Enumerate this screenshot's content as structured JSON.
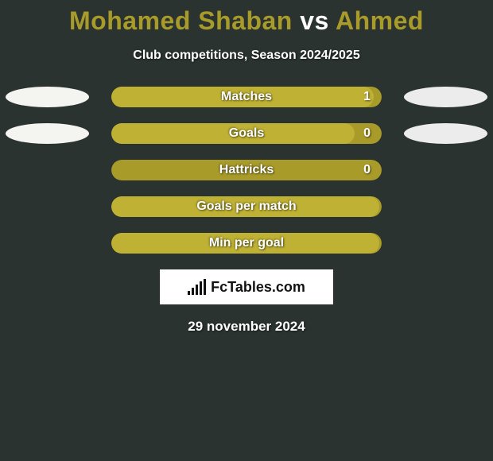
{
  "background_color": "#2a332f",
  "title": {
    "player1": "Mohamed Shaban",
    "vs": "vs",
    "player2": "Ahmed",
    "color_p1": "#a89b2a",
    "color_vs": "#ffffff",
    "color_p2": "#a89b2a",
    "fontsize": 32
  },
  "subtitle": {
    "text": "Club competitions, Season 2024/2025",
    "fontsize": 16
  },
  "ellipse_left_color": "#f4f5f0",
  "ellipse_right_color": "#ececec",
  "bar_bg_color": "#a89b2a",
  "bar_fill_color": "#bfb133",
  "rows": [
    {
      "label": "Matches",
      "value": "1",
      "fill_pct": 97,
      "show_value": true,
      "left_ellipse": true,
      "right_ellipse": true
    },
    {
      "label": "Goals",
      "value": "0",
      "fill_pct": 90,
      "show_value": true,
      "left_ellipse": true,
      "right_ellipse": true
    },
    {
      "label": "Hattricks",
      "value": "0",
      "fill_pct": 0,
      "show_value": true,
      "left_ellipse": false,
      "right_ellipse": false
    },
    {
      "label": "Goals per match",
      "value": "",
      "fill_pct": 99,
      "show_value": false,
      "left_ellipse": false,
      "right_ellipse": false
    },
    {
      "label": "Min per goal",
      "value": "",
      "fill_pct": 99,
      "show_value": false,
      "left_ellipse": false,
      "right_ellipse": false
    }
  ],
  "footer": {
    "brand_prefix": "Fc",
    "brand_suffix": "Tables.com"
  },
  "date": "29 november 2024"
}
